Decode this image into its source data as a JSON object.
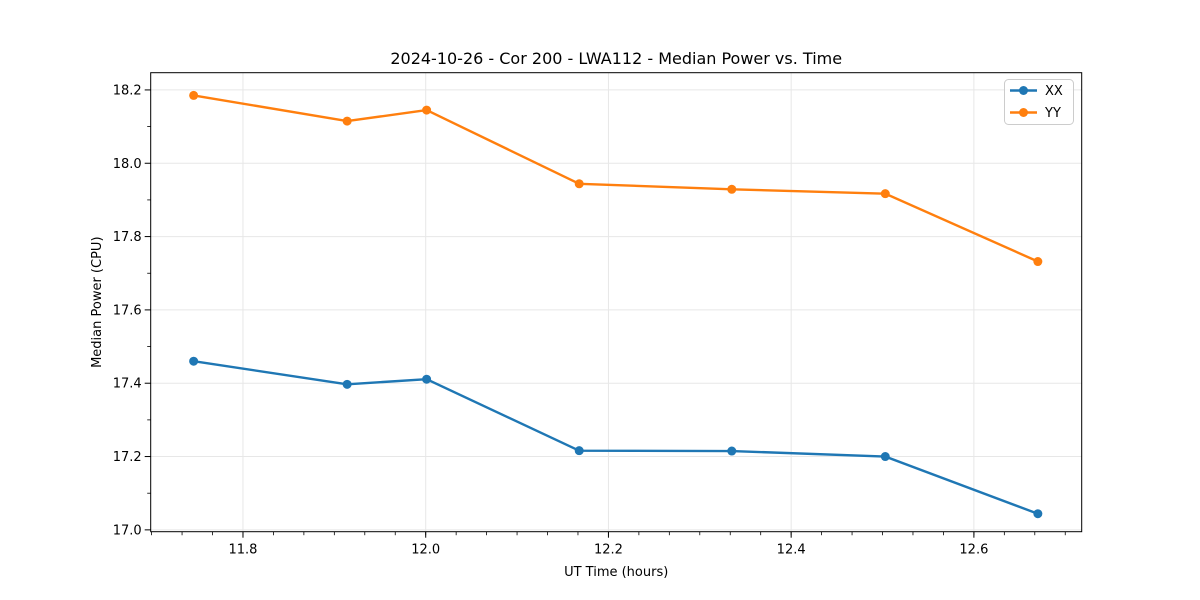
{
  "figure": {
    "title": "2024-10-26 - Cor 200 - LWA112 - Median Power vs. Time"
  },
  "chart_data": {
    "type": "line",
    "title": "2024-10-26 - Cor 200 - LWA112 - Median Power vs. Time",
    "xlabel": "UT Time (hours)",
    "ylabel": "Median Power (CPU)",
    "x": [
      11.746,
      11.914,
      12.001,
      12.168,
      12.335,
      12.503,
      12.67
    ],
    "series": [
      {
        "name": "XX",
        "color": "#1f77b4",
        "values": [
          17.46,
          17.397,
          17.411,
          17.216,
          17.215,
          17.2,
          17.044
        ]
      },
      {
        "name": "YY",
        "color": "#ff7f0e",
        "values": [
          18.185,
          18.115,
          18.145,
          17.944,
          17.929,
          17.917,
          17.732
        ]
      }
    ],
    "xlim": [
      11.699,
      12.718
    ],
    "ylim": [
      16.995,
      18.247
    ],
    "xticks": [
      11.8,
      12.0,
      12.2,
      12.4,
      12.6
    ],
    "yticks": [
      17.0,
      17.2,
      17.4,
      17.6,
      17.8,
      18.0,
      18.2
    ],
    "x_tick_decimals": 1,
    "y_tick_decimals": 1,
    "x_minor_step": 0.0333333,
    "y_minor_step": 0.1,
    "grid": "major",
    "grid_color": "#e7e7e7",
    "spine_color": "#000000",
    "legend": {
      "position": "upper right",
      "labels": [
        "XX",
        "YY"
      ]
    },
    "line_width": 2.4,
    "marker": "circle",
    "marker_radius": 4.5
  }
}
